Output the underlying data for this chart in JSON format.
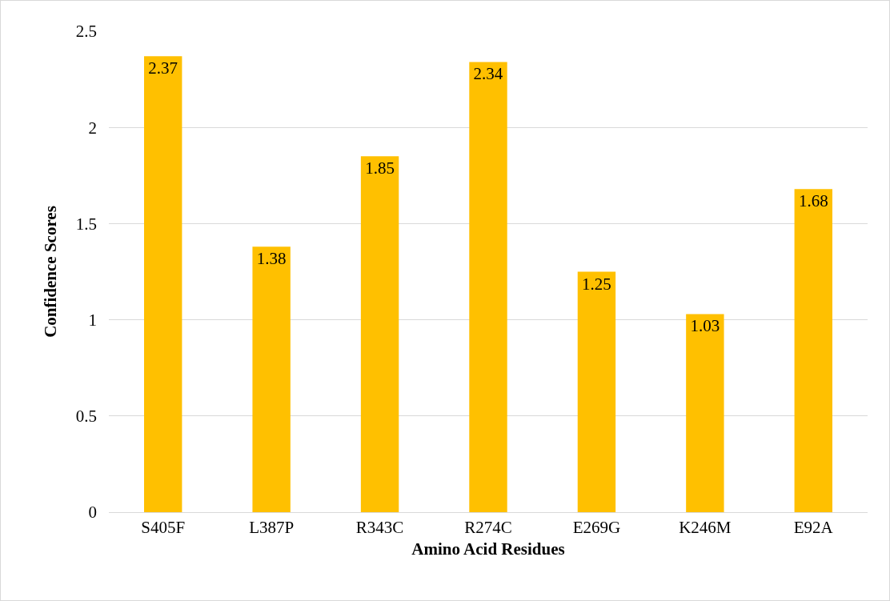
{
  "chart_data": {
    "type": "bar",
    "xlabel": "Amino Acid Residues",
    "ylabel": "Confidence Scores",
    "categories": [
      "S405F",
      "L387P",
      "R343C",
      "R274C",
      "E269G",
      "K246M",
      "E92A"
    ],
    "values": [
      2.37,
      1.38,
      1.85,
      2.34,
      1.25,
      1.03,
      1.68
    ],
    "color": "#ffc000",
    "ylim": [
      0,
      2.5
    ],
    "yticks": [
      0,
      0.5,
      1,
      1.5,
      2,
      2.5
    ],
    "grid": "y",
    "data_labels": true
  }
}
